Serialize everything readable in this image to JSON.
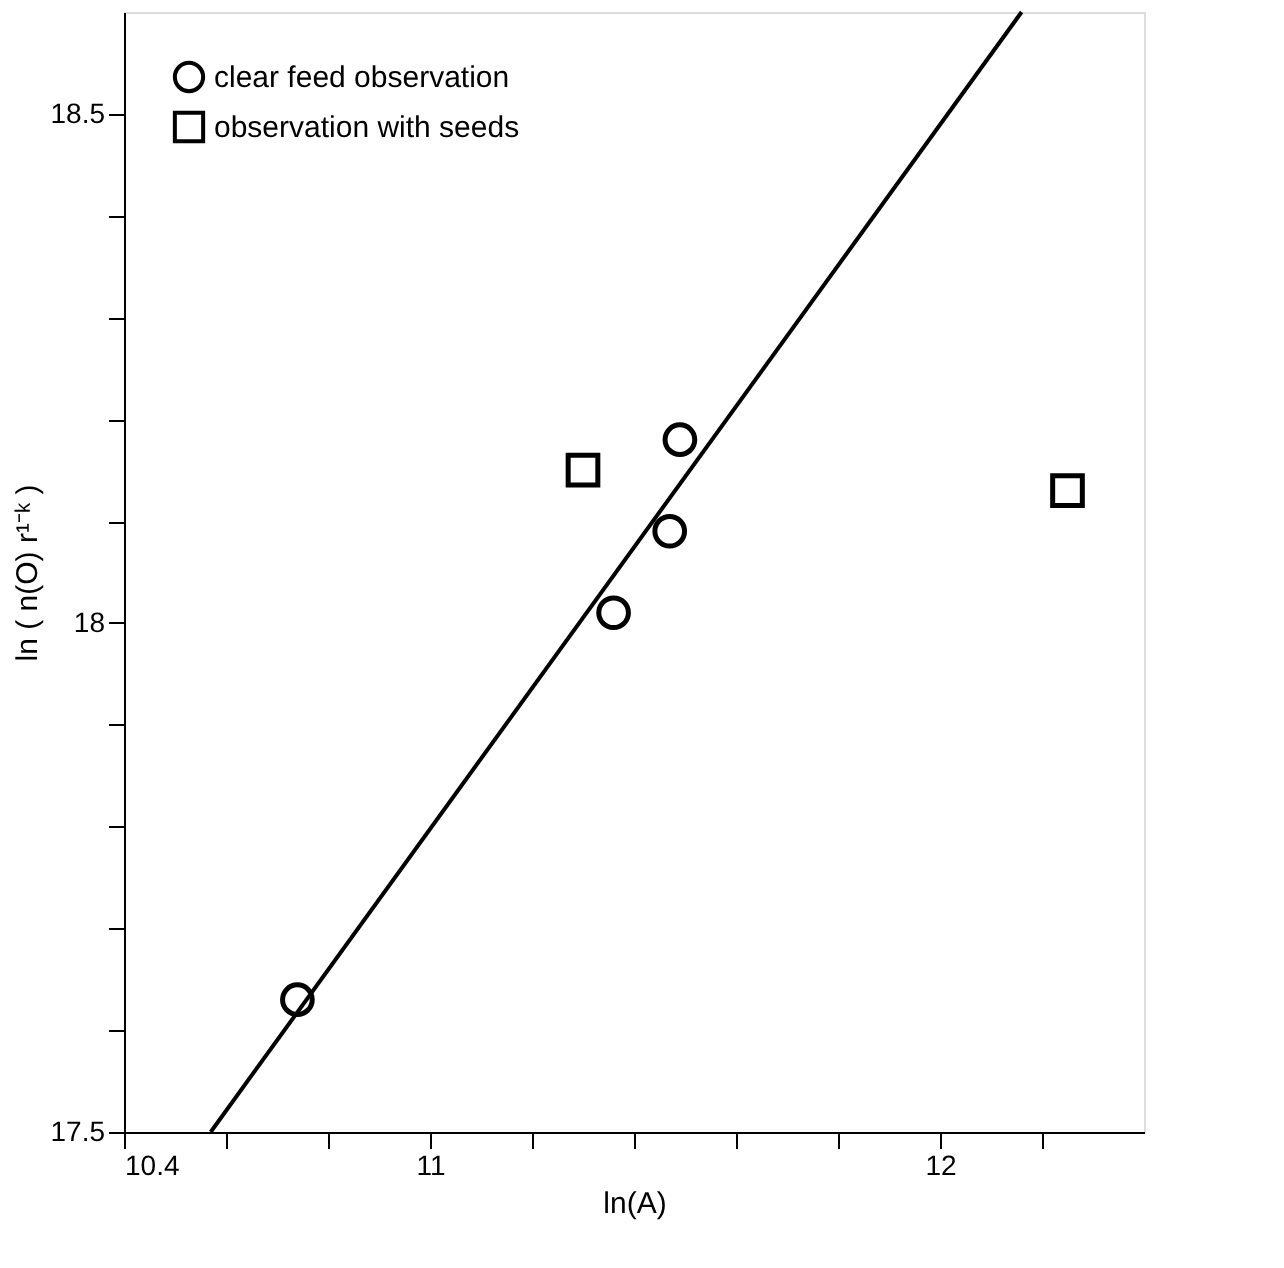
{
  "chart_data": {
    "type": "scatter",
    "xlabel": "ln(A)",
    "ylabel": "ln ( n(O) r¹⁻ᵏ )",
    "xlim": [
      10.4,
      12.4
    ],
    "ylim": [
      17.5,
      18.6
    ],
    "xticks": [
      10.4,
      {
        "value": 10.6,
        "label": null
      },
      {
        "value": 10.8,
        "label": null
      },
      11,
      {
        "value": 11.2,
        "label": null
      },
      {
        "value": 11.4,
        "label": null
      },
      {
        "value": 11.6,
        "label": null
      },
      {
        "value": 11.8,
        "label": null
      },
      12,
      {
        "value": 12.2,
        "label": null
      }
    ],
    "yticks": [
      17.5,
      {
        "value": 17.6,
        "label": null
      },
      {
        "value": 17.7,
        "label": null
      },
      {
        "value": 17.8,
        "label": null
      },
      {
        "value": 17.9,
        "label": null
      },
      18,
      {
        "value": 18.1,
        "label": null
      },
      {
        "value": 18.2,
        "label": null
      },
      {
        "value": 18.3,
        "label": null
      },
      {
        "value": 18.4,
        "label": null
      },
      18.5
    ],
    "grid": false,
    "legend": "top left",
    "series": [
      {
        "name": "clear feed observation",
        "color": "#000000",
        "marker": "circle",
        "x": [
          10.74,
          11.36,
          11.47,
          11.49
        ],
        "values": [
          17.63,
          18.01,
          18.09,
          18.18
        ]
      },
      {
        "name": "observation with seeds",
        "color": "#000000",
        "marker": "square",
        "x": [
          11.3,
          12.25
        ],
        "values": [
          18.15,
          18.13
        ]
      },
      {
        "type": "line",
        "color": "#000000",
        "x": [
          10.57,
          12.16
        ],
        "values": [
          17.5,
          18.6
        ]
      }
    ]
  }
}
